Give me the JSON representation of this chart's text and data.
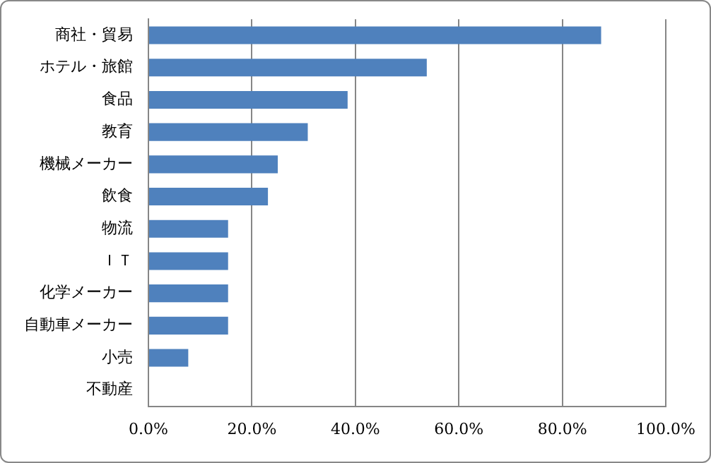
{
  "chart_data": {
    "type": "bar",
    "orientation": "horizontal",
    "categories": [
      "商社・貿易",
      "ホテル・旅館",
      "食品",
      "教育",
      "機械メーカー",
      "飲食",
      "物流",
      "ＩＴ",
      "化学メーカー",
      "自動車メーカー",
      "小売",
      "不動産"
    ],
    "values": [
      87.5,
      53.8,
      38.5,
      30.8,
      25.0,
      23.1,
      15.4,
      15.4,
      15.4,
      15.4,
      7.7,
      0
    ],
    "color": "#4f81bd",
    "xlim": [
      0,
      100
    ],
    "xticks": [
      {
        "value": 0,
        "label": "0.0%"
      },
      {
        "value": 20,
        "label": "20.0%"
      },
      {
        "value": 40,
        "label": "40.0%"
      },
      {
        "value": 60,
        "label": "60.0%"
      },
      {
        "value": 80,
        "label": "80.0%"
      },
      {
        "value": 100,
        "label": "100.0%"
      }
    ],
    "grid": "x",
    "legend": false
  }
}
